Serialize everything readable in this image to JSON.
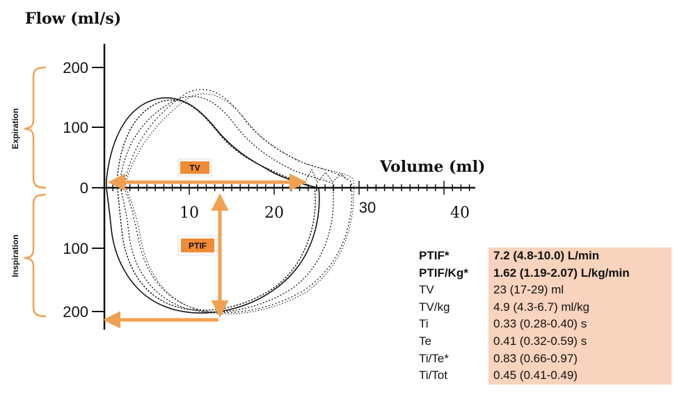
{
  "chart_data": {
    "type": "line",
    "ylabel": "Flow (ml/s)",
    "xlabel": "Volume (ml)",
    "x_ticks": [
      10,
      20,
      30,
      40
    ],
    "y_ticks_expiration": [
      "200",
      "100",
      "0"
    ],
    "y_ticks_inspiration": [
      "100",
      "200"
    ],
    "xlim": [
      0,
      40
    ],
    "ylim": [
      -200,
      200
    ],
    "grid": false,
    "annotations": {
      "expiration": "Expiration",
      "inspiration": "Inspiration",
      "tv": "TV",
      "ptif": "PTIF"
    },
    "colors": {
      "arrow": "#f0a050",
      "label_box": "#f28b37",
      "table_highlight": "#f8d3bd"
    }
  },
  "stats": [
    {
      "label": "PTIF*",
      "value": "7.2 (4.8-10.0) L/min",
      "bold": true
    },
    {
      "label": "PTIF/Kg*",
      "value": "1.62 (1.19-2.07) L/kg/min",
      "bold": true
    },
    {
      "label": "TV",
      "value": "23 (17-29) ml",
      "bold": false
    },
    {
      "label": "TV/kg",
      "value": "4.9 (4.3-6.7) ml/kg",
      "bold": false
    },
    {
      "label": "Ti",
      "value": "0.33 (0.28-0.40) s",
      "bold": false
    },
    {
      "label": "Te",
      "value": "0.41 (0.32-0.59) s",
      "bold": false
    },
    {
      "label": "Ti/Te*",
      "value": "0.83 (0.66-0.97)",
      "bold": false
    },
    {
      "label": "Ti/Tot",
      "value": "0.45 (0.41-0.49)",
      "bold": false
    }
  ]
}
